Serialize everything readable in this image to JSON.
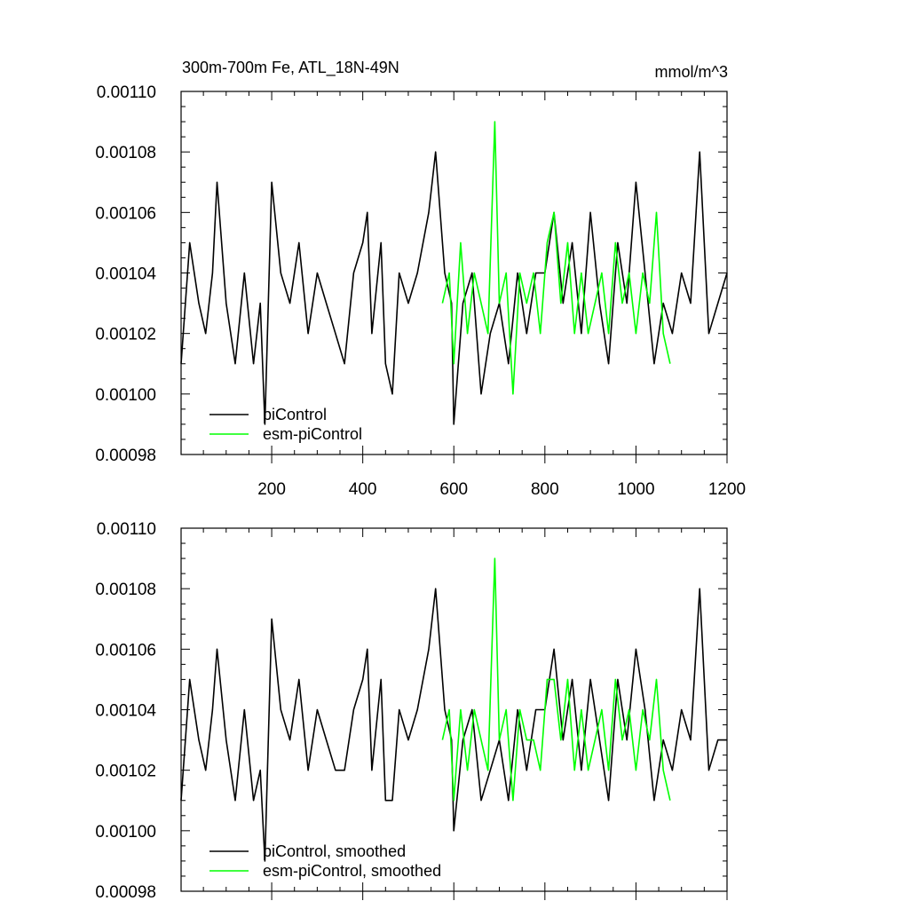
{
  "chart_data": [
    {
      "type": "line",
      "title": "300m-700m Fe, ATL_18N-49N",
      "units": "mmol/m^3",
      "xlabel": "",
      "ylabel": "",
      "xlim": [
        1,
        1200
      ],
      "ylim": [
        0.00098,
        0.0011
      ],
      "x_ticks": [
        200,
        400,
        600,
        800,
        1000,
        1200
      ],
      "y_ticks": [
        "0.00098",
        "0.00100",
        "0.00102",
        "0.00104",
        "0.00106",
        "0.00108",
        "0.00110"
      ],
      "legend": {
        "position": "bottom-left",
        "entries": [
          "piControl",
          "esm-piControl"
        ]
      },
      "series": [
        {
          "name": "piControl",
          "color": "#000000",
          "x": [
            1,
            20,
            40,
            55,
            70,
            80,
            100,
            120,
            140,
            160,
            175,
            185,
            200,
            220,
            240,
            260,
            280,
            300,
            320,
            340,
            360,
            380,
            400,
            410,
            420,
            440,
            450,
            465,
            480,
            500,
            520,
            545,
            560,
            580,
            595,
            600,
            620,
            640,
            660,
            680,
            700,
            720,
            740,
            760,
            780,
            800,
            820,
            840,
            860,
            880,
            900,
            920,
            940,
            960,
            980,
            1000,
            1020,
            1040,
            1060,
            1080,
            1100,
            1120,
            1140,
            1160,
            1180,
            1200
          ],
          "values": [
            0.00101,
            0.00105,
            0.00103,
            0.00102,
            0.00104,
            0.00107,
            0.00103,
            0.00101,
            0.00104,
            0.00101,
            0.00103,
            0.00099,
            0.00107,
            0.00104,
            0.00103,
            0.00105,
            0.00102,
            0.00104,
            0.00103,
            0.00102,
            0.00101,
            0.00104,
            0.00105,
            0.00106,
            0.00102,
            0.00105,
            0.00101,
            0.001,
            0.00104,
            0.00103,
            0.00104,
            0.00106,
            0.00108,
            0.00104,
            0.00103,
            0.00099,
            0.00103,
            0.00104,
            0.001,
            0.00102,
            0.00103,
            0.00101,
            0.00104,
            0.00102,
            0.00104,
            0.00104,
            0.00106,
            0.00103,
            0.00105,
            0.00102,
            0.00106,
            0.00103,
            0.00101,
            0.00105,
            0.00103,
            0.00107,
            0.00104,
            0.00101,
            0.00103,
            0.00102,
            0.00104,
            0.00103,
            0.00108,
            0.00102,
            0.00103,
            0.00104
          ]
        },
        {
          "name": "esm-piControl",
          "color": "#00ff00",
          "x": [
            575,
            590,
            600,
            615,
            630,
            645,
            660,
            675,
            690,
            700,
            715,
            730,
            745,
            760,
            775,
            790,
            805,
            820,
            835,
            850,
            865,
            880,
            895,
            910,
            925,
            940,
            955,
            970,
            985,
            1000,
            1015,
            1030,
            1045,
            1060,
            1075
          ],
          "values": [
            0.00103,
            0.00104,
            0.00101,
            0.00105,
            0.00102,
            0.00104,
            0.00103,
            0.00102,
            0.00109,
            0.00103,
            0.00104,
            0.001,
            0.00104,
            0.00103,
            0.00104,
            0.00102,
            0.00105,
            0.00106,
            0.00103,
            0.00105,
            0.00102,
            0.00104,
            0.00102,
            0.00103,
            0.00104,
            0.00102,
            0.00105,
            0.00103,
            0.00104,
            0.00102,
            0.00104,
            0.00103,
            0.00106,
            0.00102,
            0.00101
          ]
        }
      ]
    },
    {
      "type": "line",
      "title": "",
      "xlabel": "",
      "ylabel": "",
      "xlim": [
        1,
        1200
      ],
      "ylim": [
        0.00098,
        0.0011
      ],
      "y_ticks": [
        "0.00098",
        "0.00100",
        "0.00102",
        "0.00104",
        "0.00106",
        "0.00108",
        "0.00110"
      ],
      "legend": {
        "position": "bottom-left",
        "entries": [
          "piControl, smoothed",
          "esm-piControl, smoothed"
        ]
      },
      "series": [
        {
          "name": "piControl, smoothed",
          "color": "#000000",
          "x": [
            1,
            20,
            40,
            55,
            70,
            80,
            100,
            120,
            140,
            160,
            175,
            185,
            200,
            220,
            240,
            260,
            280,
            300,
            320,
            340,
            360,
            380,
            400,
            410,
            420,
            440,
            450,
            465,
            480,
            500,
            520,
            545,
            560,
            580,
            595,
            600,
            620,
            640,
            660,
            680,
            700,
            720,
            740,
            760,
            780,
            800,
            820,
            840,
            860,
            880,
            900,
            920,
            940,
            960,
            980,
            1000,
            1020,
            1040,
            1060,
            1080,
            1100,
            1120,
            1140,
            1160,
            1180,
            1200
          ],
          "values": [
            0.00101,
            0.00105,
            0.00103,
            0.00102,
            0.00104,
            0.00106,
            0.00103,
            0.00101,
            0.00104,
            0.00101,
            0.00102,
            0.00099,
            0.00107,
            0.00104,
            0.00103,
            0.00105,
            0.00102,
            0.00104,
            0.00103,
            0.00102,
            0.00102,
            0.00104,
            0.00105,
            0.00106,
            0.00102,
            0.00105,
            0.00101,
            0.00101,
            0.00104,
            0.00103,
            0.00104,
            0.00106,
            0.00108,
            0.00104,
            0.00103,
            0.001,
            0.00103,
            0.00104,
            0.00101,
            0.00102,
            0.00103,
            0.00101,
            0.00104,
            0.00102,
            0.00104,
            0.00104,
            0.00106,
            0.00103,
            0.00105,
            0.00102,
            0.00105,
            0.00103,
            0.00101,
            0.00105,
            0.00103,
            0.00106,
            0.00104,
            0.00101,
            0.00103,
            0.00102,
            0.00104,
            0.00103,
            0.00108,
            0.00102,
            0.00103,
            0.00103
          ]
        },
        {
          "name": "esm-piControl, smoothed",
          "color": "#00ff00",
          "x": [
            575,
            590,
            600,
            615,
            630,
            645,
            660,
            675,
            690,
            700,
            715,
            730,
            745,
            760,
            775,
            790,
            805,
            820,
            835,
            850,
            865,
            880,
            895,
            910,
            925,
            940,
            955,
            970,
            985,
            1000,
            1015,
            1030,
            1045,
            1060,
            1075
          ],
          "values": [
            0.00103,
            0.00104,
            0.00101,
            0.00104,
            0.00102,
            0.00104,
            0.00103,
            0.00102,
            0.00109,
            0.00103,
            0.00104,
            0.00101,
            0.00104,
            0.00103,
            0.00103,
            0.00102,
            0.00105,
            0.00105,
            0.00103,
            0.00105,
            0.00102,
            0.00104,
            0.00102,
            0.00103,
            0.00104,
            0.00102,
            0.00105,
            0.00103,
            0.00104,
            0.00102,
            0.00104,
            0.00103,
            0.00105,
            0.00102,
            0.00101
          ]
        }
      ]
    }
  ]
}
